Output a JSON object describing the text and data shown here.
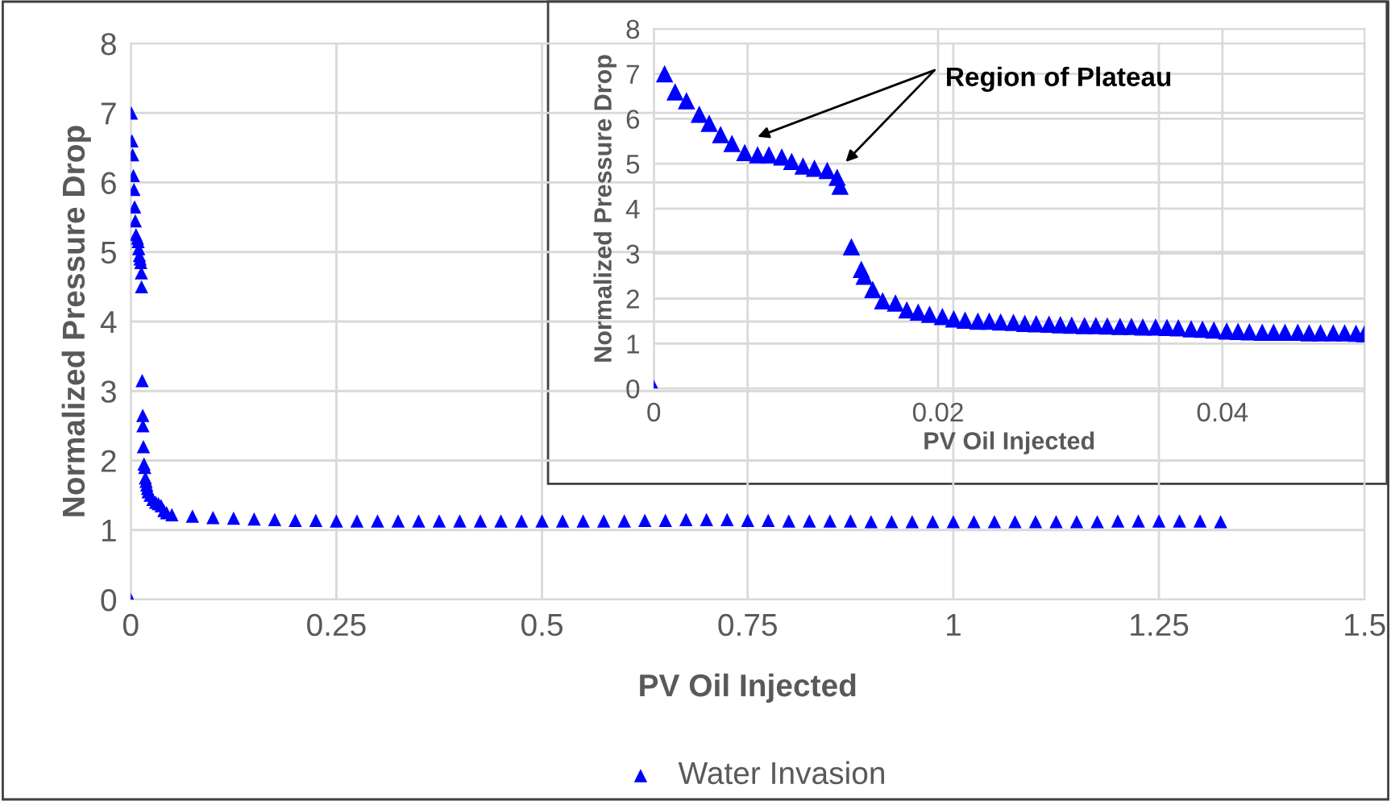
{
  "chart_data": [
    {
      "type": "scatter",
      "xlabel": "PV Oil Injected",
      "ylabel": "Normalized Pressure Drop",
      "marker": "triangle",
      "grid": true,
      "legend": "bottom",
      "xlim": [
        0,
        1.5
      ],
      "ylim": [
        0,
        8
      ],
      "xticks": [
        0,
        0.25,
        0.5,
        0.75,
        1,
        1.25,
        1.5
      ],
      "yticks": [
        0,
        1,
        2,
        3,
        4,
        5,
        6,
        7,
        8
      ],
      "series": [
        {
          "name": "Water Invasion",
          "color": "#0000ff",
          "x": [
            0,
            0.00076,
            0.0015,
            0.0023,
            0.0032,
            0.0039,
            0.0047,
            0.0055,
            0.0064,
            0.0081,
            0.009,
            0.0097,
            0.0105,
            0.0113,
            0.0122,
            0.0129,
            0.0131,
            0.0139,
            0.0146,
            0.0148,
            0.0154,
            0.0161,
            0.017,
            0.0178,
            0.0186,
            0.0194,
            0.0203,
            0.0211,
            0.0236,
            0.0269,
            0.0303,
            0.0336,
            0.0369,
            0.0403,
            0.0436,
            0.05,
            0.075,
            0.1,
            0.125,
            0.15,
            0.175,
            0.2,
            0.225,
            0.25,
            0.275,
            0.3,
            0.325,
            0.35,
            0.375,
            0.4,
            0.425,
            0.45,
            0.475,
            0.5,
            0.525,
            0.55,
            0.575,
            0.6,
            0.625,
            0.65,
            0.675,
            0.7,
            0.725,
            0.75,
            0.775,
            0.8,
            0.825,
            0.85,
            0.875,
            0.9,
            0.925,
            0.95,
            0.975,
            1.0,
            1.025,
            1.05,
            1.075,
            1.1,
            1.125,
            1.15,
            1.175,
            1.2,
            1.225,
            1.25,
            1.275,
            1.3,
            1.325
          ],
          "values": [
            0,
            7.0,
            6.6,
            6.4,
            6.1,
            5.9,
            5.65,
            5.45,
            5.25,
            5.2,
            5.15,
            5.05,
            4.95,
            4.9,
            4.85,
            4.7,
            4.5,
            3.15,
            2.65,
            2.5,
            2.2,
            1.95,
            1.9,
            1.75,
            1.7,
            1.65,
            1.6,
            1.55,
            1.5,
            1.44,
            1.4,
            1.38,
            1.35,
            1.28,
            1.25,
            1.22,
            1.2,
            1.18,
            1.17,
            1.16,
            1.15,
            1.14,
            1.14,
            1.13,
            1.13,
            1.13,
            1.13,
            1.13,
            1.13,
            1.13,
            1.13,
            1.13,
            1.13,
            1.13,
            1.13,
            1.13,
            1.13,
            1.13,
            1.14,
            1.14,
            1.15,
            1.15,
            1.15,
            1.14,
            1.14,
            1.13,
            1.13,
            1.13,
            1.13,
            1.12,
            1.12,
            1.12,
            1.12,
            1.12,
            1.12,
            1.12,
            1.12,
            1.12,
            1.12,
            1.12,
            1.12,
            1.13,
            1.13,
            1.13,
            1.13,
            1.13,
            1.12
          ]
        }
      ]
    },
    {
      "type": "scatter",
      "xlabel": "PV Oil Injected",
      "ylabel": "Normalized Pressure Drop",
      "marker": "triangle",
      "grid": true,
      "xlim": [
        0,
        0.05
      ],
      "ylim": [
        0,
        8
      ],
      "xticks": [
        0,
        0.02,
        0.04
      ],
      "yticks": [
        0,
        1,
        2,
        3,
        4,
        5,
        6,
        7,
        8
      ],
      "annotations": [
        "Region of Plateau"
      ],
      "series": [
        {
          "color": "#0000ff",
          "x": [
            0,
            0.00076,
            0.0015,
            0.0023,
            0.0032,
            0.0039,
            0.0047,
            0.0055,
            0.0064,
            0.0073,
            0.0081,
            0.009,
            0.0097,
            0.0105,
            0.0113,
            0.0122,
            0.0129,
            0.0131,
            0.0139,
            0.0146,
            0.0148,
            0.0154,
            0.0161,
            0.017,
            0.0178,
            0.0186,
            0.0194,
            0.0203,
            0.0211,
            0.0219,
            0.0228,
            0.0236,
            0.0244,
            0.0253,
            0.0261,
            0.0269,
            0.0278,
            0.0286,
            0.0294,
            0.0303,
            0.0311,
            0.0319,
            0.0328,
            0.0336,
            0.0344,
            0.0353,
            0.0361,
            0.0369,
            0.0378,
            0.0386,
            0.0394,
            0.0403,
            0.0411,
            0.0419,
            0.0428,
            0.0436,
            0.0444,
            0.0453,
            0.0461,
            0.0469,
            0.0478,
            0.0486,
            0.0494,
            0.05
          ],
          "values": [
            0,
            7.0,
            6.6,
            6.4,
            6.1,
            5.9,
            5.65,
            5.45,
            5.25,
            5.2,
            5.2,
            5.15,
            5.05,
            4.95,
            4.9,
            4.85,
            4.7,
            4.5,
            3.15,
            2.65,
            2.5,
            2.2,
            1.95,
            1.9,
            1.75,
            1.7,
            1.65,
            1.6,
            1.55,
            1.52,
            1.5,
            1.5,
            1.48,
            1.47,
            1.45,
            1.44,
            1.43,
            1.42,
            1.41,
            1.4,
            1.4,
            1.39,
            1.38,
            1.38,
            1.37,
            1.37,
            1.36,
            1.35,
            1.33,
            1.32,
            1.3,
            1.28,
            1.27,
            1.26,
            1.25,
            1.25,
            1.25,
            1.25,
            1.24,
            1.24,
            1.24,
            1.24,
            1.23,
            1.22
          ]
        }
      ]
    }
  ]
}
